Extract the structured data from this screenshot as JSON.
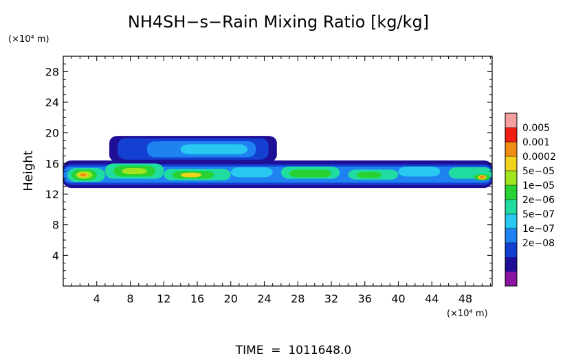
{
  "chart_data": {
    "type": "heatmap",
    "title": "NH4SH−s−Rain Mixing Ratio [kg/kg]",
    "ylabel": "Height",
    "y_unit": "(×10⁴ m)",
    "x_unit": "(×10⁴ m)",
    "xlim": [
      0,
      51.2
    ],
    "ylim": [
      0,
      30
    ],
    "x_ticks": [
      "4",
      "8",
      "12",
      "16",
      "20",
      "24",
      "28",
      "32",
      "36",
      "40",
      "44",
      "48"
    ],
    "y_ticks": [
      "4",
      "8",
      "12",
      "16",
      "20",
      "24",
      "28"
    ],
    "footer": "TIME  =  1011648.0",
    "colorbar": {
      "levels": [
        "0.005",
        "0.001",
        "0.0002",
        "5e−05",
        "1e−05",
        "2e−06",
        "5e−07",
        "1e−07",
        "2e−08"
      ],
      "colors": [
        "#8a14a0",
        "#1e0f96",
        "#1440d2",
        "#1e82f0",
        "#28c8f0",
        "#20dca0",
        "#28d232",
        "#a0e61e",
        "#f0d21e",
        "#f08c14",
        "#f01e14",
        "#f5a0a0"
      ]
    },
    "regions": [
      {
        "x": [
          0,
          51.2
        ],
        "y": [
          12.8,
          16.4
        ],
        "level": 1
      },
      {
        "x": [
          0,
          51.2
        ],
        "y": [
          13.2,
          15.9
        ],
        "level": 2
      },
      {
        "x": [
          0,
          51.2
        ],
        "y": [
          13.5,
          15.6
        ],
        "level": 3
      },
      {
        "x": [
          5.5,
          25.5
        ],
        "y": [
          16.2,
          19.6
        ],
        "level": 1
      },
      {
        "x": [
          6.5,
          24.5
        ],
        "y": [
          16.5,
          19.3
        ],
        "level": 2
      },
      {
        "x": [
          10,
          23
        ],
        "y": [
          16.8,
          18.9
        ],
        "level": 3
      },
      {
        "x": [
          14,
          22
        ],
        "y": [
          17.2,
          18.5
        ],
        "level": 4
      },
      {
        "x": [
          0.5,
          5
        ],
        "y": [
          13.6,
          15.4
        ],
        "level": 5
      },
      {
        "x": [
          1,
          4
        ],
        "y": [
          13.8,
          15.2
        ],
        "level": 6
      },
      {
        "x": [
          1.5,
          3.5
        ],
        "y": [
          14.0,
          15.0
        ],
        "level": 7
      },
      {
        "x": [
          1.8,
          3.0
        ],
        "y": [
          14.2,
          14.8
        ],
        "level": 8
      },
      {
        "x": [
          2.0,
          2.8
        ],
        "y": [
          14.3,
          14.7
        ],
        "level": 9
      },
      {
        "x": [
          5,
          12
        ],
        "y": [
          14.0,
          16.0
        ],
        "level": 5
      },
      {
        "x": [
          6,
          11
        ],
        "y": [
          14.3,
          15.7
        ],
        "level": 6
      },
      {
        "x": [
          7,
          10
        ],
        "y": [
          14.6,
          15.4
        ],
        "level": 7
      },
      {
        "x": [
          12,
          20
        ],
        "y": [
          13.8,
          15.3
        ],
        "level": 5
      },
      {
        "x": [
          13,
          18
        ],
        "y": [
          14.0,
          15.0
        ],
        "level": 6
      },
      {
        "x": [
          14,
          16.5
        ],
        "y": [
          14.2,
          14.8
        ],
        "level": 8
      },
      {
        "x": [
          20,
          25
        ],
        "y": [
          14.2,
          15.5
        ],
        "level": 4
      },
      {
        "x": [
          26,
          33
        ],
        "y": [
          14.0,
          15.6
        ],
        "level": 5
      },
      {
        "x": [
          27,
          32
        ],
        "y": [
          14.2,
          15.2
        ],
        "level": 6
      },
      {
        "x": [
          34,
          40
        ],
        "y": [
          13.9,
          15.2
        ],
        "level": 5
      },
      {
        "x": [
          35,
          38
        ],
        "y": [
          14.1,
          14.9
        ],
        "level": 6
      },
      {
        "x": [
          40,
          45
        ],
        "y": [
          14.3,
          15.6
        ],
        "level": 4
      },
      {
        "x": [
          46,
          51.2
        ],
        "y": [
          14.0,
          15.5
        ],
        "level": 5
      },
      {
        "x": [
          49,
          51
        ],
        "y": [
          13.8,
          14.6
        ],
        "level": 6
      },
      {
        "x": [
          49.5,
          50.5
        ],
        "y": [
          13.9,
          14.5
        ],
        "level": 8
      },
      {
        "x": [
          49.7,
          50.3
        ],
        "y": [
          14.0,
          14.4
        ],
        "level": 9
      }
    ]
  }
}
